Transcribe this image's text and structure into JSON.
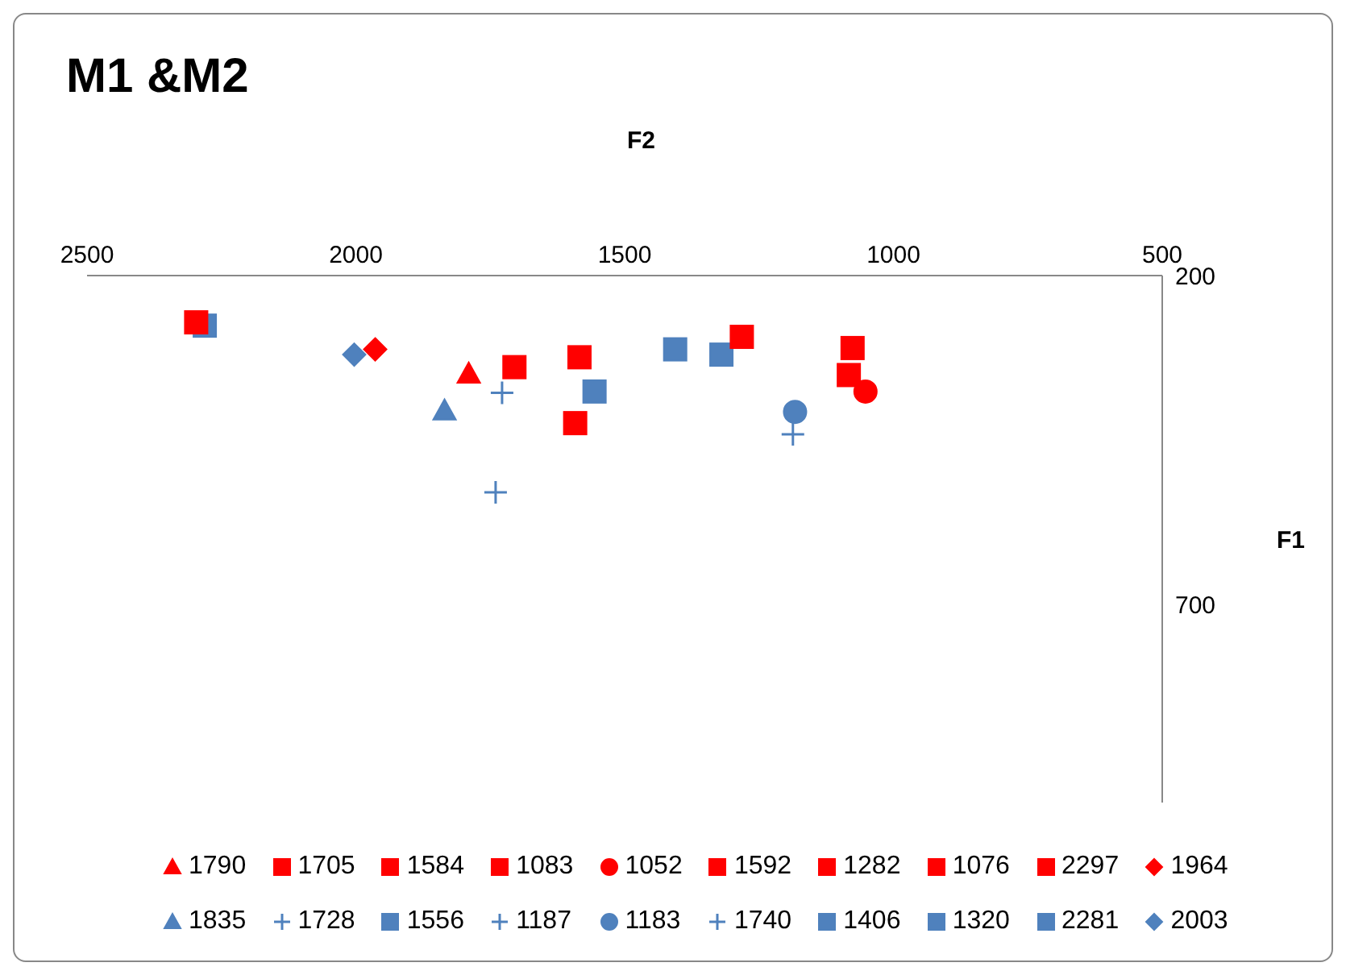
{
  "chart_data": {
    "type": "scatter",
    "title": "M1 &M2",
    "xlabel": "F2",
    "ylabel": "F1",
    "xlim": [
      2500,
      500
    ],
    "ylim": [
      1000,
      200
    ],
    "xticks": [
      2500,
      2000,
      1500,
      1000,
      500
    ],
    "yticks": [
      200,
      700
    ],
    "grid": false,
    "legend": "bottom",
    "series": [
      {
        "name": "1790",
        "color": "#ff0000",
        "marker": "triangle",
        "x": [
          1790
        ],
        "values": [
          349
        ]
      },
      {
        "name": "1705",
        "color": "#ff0000",
        "marker": "square",
        "x": [
          1705
        ],
        "values": [
          339
        ]
      },
      {
        "name": "1584",
        "color": "#ff0000",
        "marker": "square",
        "x": [
          1584
        ],
        "values": [
          324
        ]
      },
      {
        "name": "1083",
        "color": "#ff0000",
        "marker": "square",
        "x": [
          1083
        ],
        "values": [
          351
        ]
      },
      {
        "name": "1052",
        "color": "#ff0000",
        "marker": "circle",
        "x": [
          1052
        ],
        "values": [
          376
        ]
      },
      {
        "name": "1592",
        "color": "#ff0000",
        "marker": "square",
        "x": [
          1592
        ],
        "values": [
          424
        ]
      },
      {
        "name": "1282",
        "color": "#ff0000",
        "marker": "square",
        "x": [
          1282
        ],
        "values": [
          293
        ]
      },
      {
        "name": "1076",
        "color": "#ff0000",
        "marker": "square",
        "x": [
          1076
        ],
        "values": [
          310
        ]
      },
      {
        "name": "2297",
        "color": "#ff0000",
        "marker": "square",
        "x": [
          2297
        ],
        "values": [
          271
        ]
      },
      {
        "name": "1964",
        "color": "#ff0000",
        "marker": "diamond",
        "x": [
          1964
        ],
        "values": [
          312
        ]
      },
      {
        "name": "1835",
        "color": "#4f81bd",
        "marker": "triangle",
        "x": [
          1835
        ],
        "values": [
          405
        ]
      },
      {
        "name": "1728",
        "color": "#4f81bd",
        "marker": "cross",
        "x": [
          1728
        ],
        "values": [
          378
        ]
      },
      {
        "name": "1556",
        "color": "#4f81bd",
        "marker": "square",
        "x": [
          1556
        ],
        "values": [
          376
        ]
      },
      {
        "name": "1187",
        "color": "#4f81bd",
        "marker": "cross",
        "x": [
          1187
        ],
        "values": [
          441
        ]
      },
      {
        "name": "1183",
        "color": "#4f81bd",
        "marker": "circle",
        "x": [
          1183
        ],
        "values": [
          407
        ]
      },
      {
        "name": "1740",
        "color": "#4f81bd",
        "marker": "cross",
        "x": [
          1740
        ],
        "values": [
          529
        ]
      },
      {
        "name": "1406",
        "color": "#4f81bd",
        "marker": "square",
        "x": [
          1406
        ],
        "values": [
          312
        ]
      },
      {
        "name": "1320",
        "color": "#4f81bd",
        "marker": "square",
        "x": [
          1320
        ],
        "values": [
          320
        ]
      },
      {
        "name": "2281",
        "color": "#4f81bd",
        "marker": "square",
        "x": [
          2281
        ],
        "values": [
          276
        ]
      },
      {
        "name": "2003",
        "color": "#4f81bd",
        "marker": "diamond",
        "x": [
          2003
        ],
        "values": [
          320
        ]
      }
    ]
  }
}
